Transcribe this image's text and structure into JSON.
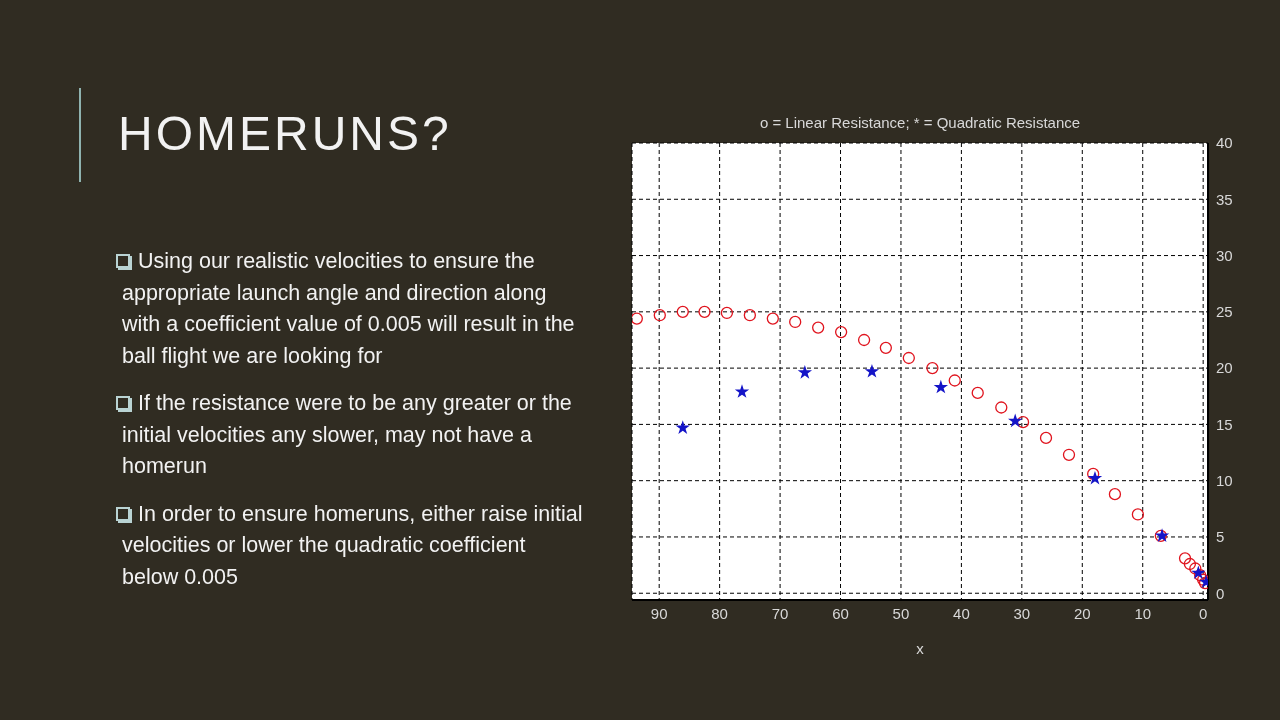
{
  "chart_data": {
    "type": "scatter",
    "title": "o = Linear Resistance; * = Quadratic Resistance",
    "xlabel": "x",
    "xlim": [
      94.5,
      -0.8
    ],
    "xticks": [
      90,
      80,
      70,
      60,
      50,
      40,
      30,
      20,
      10,
      0
    ],
    "ylim": [
      -0.6,
      40
    ],
    "yticks": [
      0,
      5,
      10,
      15,
      20,
      25,
      30,
      35,
      40
    ],
    "grid": true,
    "series": [
      {
        "color": "#e0141e",
        "marker": "circle",
        "x": [
          93.7,
          89.9,
          86.1,
          82.5,
          78.8,
          75.0,
          71.2,
          67.5,
          63.7,
          59.9,
          56.1,
          52.5,
          48.7,
          44.8,
          41.1,
          37.3,
          33.4,
          29.8,
          26.0,
          22.2,
          18.2,
          14.6,
          10.8,
          7.0,
          3.0,
          2.2,
          1.3,
          0.5,
          0,
          -0.3
        ],
        "values": [
          24.4,
          24.7,
          25.0,
          25.0,
          24.9,
          24.7,
          24.4,
          24.1,
          23.6,
          23.2,
          22.5,
          21.8,
          20.9,
          20.0,
          18.9,
          17.8,
          16.5,
          15.2,
          13.8,
          12.3,
          10.6,
          8.8,
          7.0,
          5.1,
          3.1,
          2.6,
          2.2,
          1.6,
          1.2,
          0.9
        ]
      },
      {
        "color": "#1414c8",
        "marker": "star",
        "x": [
          86.1,
          76.3,
          65.9,
          54.8,
          43.4,
          31.1,
          17.9,
          6.8,
          0.8,
          -0.5
        ],
        "values": [
          14.7,
          17.9,
          19.6,
          19.7,
          18.3,
          15.3,
          10.2,
          5.1,
          1.8,
          1.0
        ]
      }
    ],
    "annotations": [
      "HOMERUNS?",
      "Using our realistic velocities to ensure the appropriate launch angle and direction along with a coefficient value of 0.005 will result in the ball flight we are looking for",
      "If the resistance were to be any greater or the initial velocities any slower, may not have a homerun",
      "In order to ensure homeruns, either raise initial velocities or lower the quadratic coefficient below 0.005"
    ]
  }
}
